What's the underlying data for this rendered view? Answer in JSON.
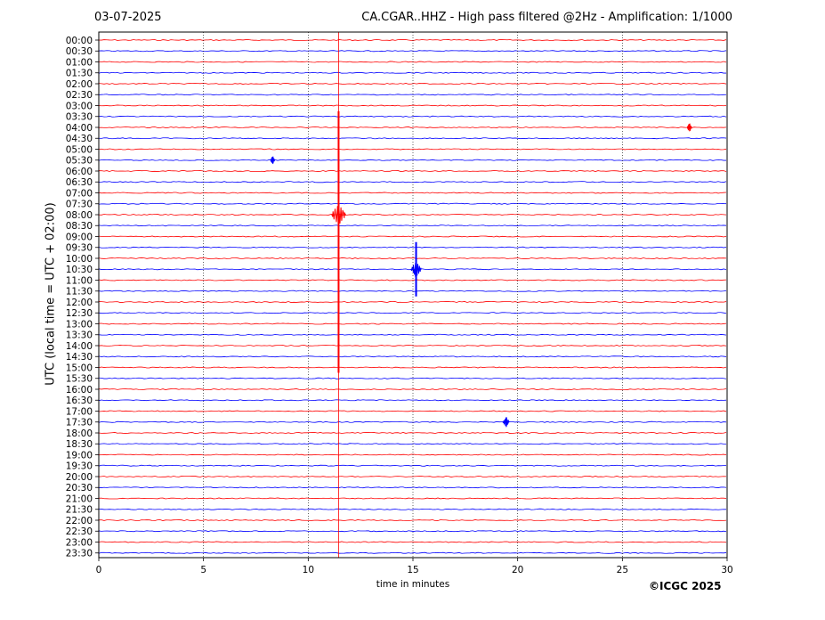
{
  "header": {
    "date": "03-07-2025",
    "title": "CA.CGAR..HHZ - High pass filtered @2Hz - Amplification: 1/1000"
  },
  "footer": {
    "copyright": "©ICGC 2025"
  },
  "chart_data": {
    "type": "line",
    "title": "CA.CGAR..HHZ - High pass filtered @2Hz - Amplification: 1/1000",
    "xlabel": "time in minutes",
    "ylabel": "UTC (local time = UTC + 02:00)",
    "xlim": [
      0,
      30
    ],
    "xticks": [
      0,
      5,
      10,
      15,
      20,
      25,
      30
    ],
    "xgrid": [
      5,
      10,
      15,
      20,
      25
    ],
    "grid": true,
    "trace_colors": [
      "#ff0000",
      "#0000ff"
    ],
    "rows": [
      "00:00",
      "00:30",
      "01:00",
      "01:30",
      "02:00",
      "02:30",
      "03:00",
      "03:30",
      "04:00",
      "04:30",
      "05:00",
      "05:30",
      "06:00",
      "06:30",
      "07:00",
      "07:30",
      "08:00",
      "08:30",
      "09:00",
      "09:30",
      "10:00",
      "10:30",
      "11:00",
      "11:30",
      "12:00",
      "12:30",
      "13:00",
      "13:30",
      "14:00",
      "14:30",
      "15:00",
      "15:30",
      "16:00",
      "16:30",
      "17:00",
      "17:30",
      "18:00",
      "18:30",
      "19:00",
      "19:30",
      "20:00",
      "20:30",
      "21:00",
      "21:30",
      "22:00",
      "22:30",
      "23:00",
      "23:30"
    ],
    "events": [
      {
        "row": "08:00",
        "minute": 11.45,
        "amplitude": 1.0,
        "extent_rows": [
          7,
          30
        ],
        "color": "#ff0000"
      },
      {
        "row": "10:30",
        "minute": 15.15,
        "amplitude": 0.6,
        "extent_rows": [
          19,
          23
        ],
        "color": "#0000ff"
      },
      {
        "row": "17:30",
        "minute": 19.45,
        "amplitude": 0.25,
        "extent_rows": [
          35,
          35
        ],
        "color": "#0000ff"
      },
      {
        "row": "04:00",
        "minute": 28.2,
        "amplitude": 0.08,
        "extent_rows": [
          8,
          8
        ],
        "color": "#ff0000"
      },
      {
        "row": "05:30",
        "minute": 8.3,
        "amplitude": 0.05,
        "extent_rows": [
          11,
          11
        ],
        "color": "#0000ff"
      }
    ]
  }
}
